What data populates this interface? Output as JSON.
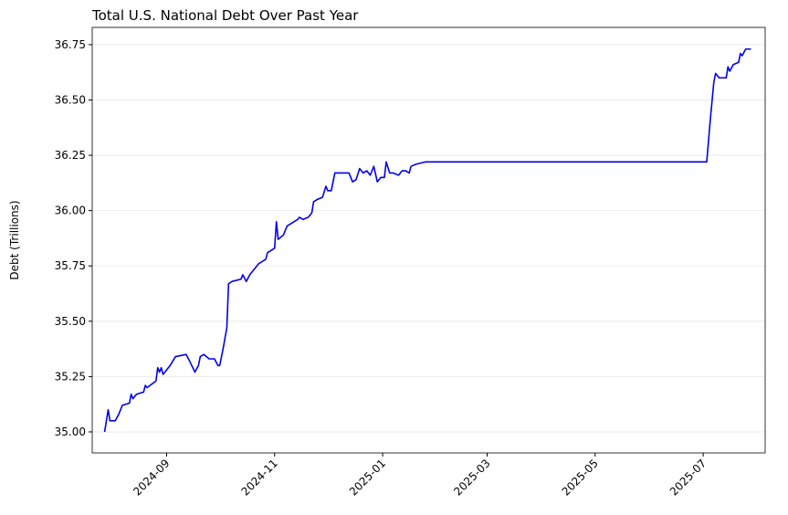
{
  "chart_data": {
    "type": "line",
    "title": "Total U.S. National Debt Over Past Year",
    "y_label": "Debt (Trillions)",
    "x": [
      "2024-07-28",
      "2024-07-30",
      "2024-07-31",
      "2024-08-03",
      "2024-08-05",
      "2024-08-07",
      "2024-08-11",
      "2024-08-12",
      "2024-08-13",
      "2024-08-15",
      "2024-08-19",
      "2024-08-20",
      "2024-08-21",
      "2024-08-26",
      "2024-08-27",
      "2024-08-28",
      "2024-08-29",
      "2024-08-30",
      "2024-09-03",
      "2024-09-06",
      "2024-09-12",
      "2024-09-14",
      "2024-09-17",
      "2024-09-19",
      "2024-09-20",
      "2024-09-22",
      "2024-09-25",
      "2024-09-28",
      "2024-09-30",
      "2024-10-01",
      "2024-10-03",
      "2024-10-05",
      "2024-10-06",
      "2024-10-08",
      "2024-10-13",
      "2024-10-14",
      "2024-10-16",
      "2024-10-18",
      "2024-10-21",
      "2024-10-23",
      "2024-10-25",
      "2024-10-27",
      "2024-10-28",
      "2024-10-30",
      "2024-11-01",
      "2024-11-02",
      "2024-11-03",
      "2024-11-06",
      "2024-11-08",
      "2024-11-10",
      "2024-11-14",
      "2024-11-15",
      "2024-11-17",
      "2024-11-20",
      "2024-11-22",
      "2024-11-23",
      "2024-11-25",
      "2024-11-28",
      "2024-11-30",
      "2024-12-01",
      "2024-12-03",
      "2024-12-05",
      "2024-12-09",
      "2024-12-13",
      "2024-12-15",
      "2024-12-17",
      "2024-12-19",
      "2024-12-21",
      "2024-12-23",
      "2024-12-25",
      "2024-12-27",
      "2024-12-29",
      "2024-12-31",
      "2025-01-02",
      "2025-01-03",
      "2025-01-05",
      "2025-01-07",
      "2025-01-10",
      "2025-01-12",
      "2025-01-14",
      "2025-01-16",
      "2025-01-17",
      "2025-01-20",
      "2025-01-25",
      "2025-02-01",
      "2025-02-15",
      "2025-02-25",
      "2025-03-15",
      "2025-04-01",
      "2025-05-01",
      "2025-06-01",
      "2025-07-01",
      "2025-07-03",
      "2025-07-05",
      "2025-07-07",
      "2025-07-08",
      "2025-07-10",
      "2025-07-14",
      "2025-07-15",
      "2025-07-16",
      "2025-07-18",
      "2025-07-21",
      "2025-07-22",
      "2025-07-23",
      "2025-07-25",
      "2025-07-28"
    ],
    "series": [
      {
        "color": "#0000ee",
        "values": [
          35.0,
          35.1,
          35.05,
          35.05,
          35.08,
          35.12,
          35.13,
          35.17,
          35.15,
          35.17,
          35.18,
          35.21,
          35.2,
          35.23,
          35.29,
          35.27,
          35.29,
          35.26,
          35.3,
          35.34,
          35.35,
          35.32,
          35.27,
          35.3,
          35.34,
          35.35,
          35.33,
          35.33,
          35.3,
          35.3,
          35.38,
          35.47,
          35.67,
          35.68,
          35.69,
          35.71,
          35.68,
          35.71,
          35.74,
          35.76,
          35.77,
          35.78,
          35.81,
          35.82,
          35.83,
          35.95,
          35.87,
          35.89,
          35.93,
          35.94,
          35.96,
          35.97,
          35.96,
          35.97,
          35.99,
          36.04,
          36.05,
          36.06,
          36.11,
          36.09,
          36.09,
          36.17,
          36.17,
          36.17,
          36.13,
          36.14,
          36.19,
          36.17,
          36.18,
          36.16,
          36.2,
          36.13,
          36.15,
          36.15,
          36.22,
          36.17,
          36.17,
          36.16,
          36.18,
          36.18,
          36.17,
          36.2,
          36.21,
          36.22,
          36.22,
          36.22,
          36.22,
          36.22,
          36.22,
          36.22,
          36.22,
          36.22,
          36.22,
          36.41,
          36.58,
          36.62,
          36.6,
          36.6,
          36.65,
          36.63,
          36.66,
          36.67,
          36.71,
          36.7,
          36.73,
          36.73
        ]
      }
    ],
    "xlim": [
      "2024-07-21",
      "2025-08-05"
    ],
    "xticks": [
      {
        "value": "2024-09-01",
        "label": "2024-09"
      },
      {
        "value": "2024-11-01",
        "label": "2024-11"
      },
      {
        "value": "2025-01-01",
        "label": "2025-01"
      },
      {
        "value": "2025-03-01",
        "label": "2025-03"
      },
      {
        "value": "2025-05-01",
        "label": "2025-05"
      },
      {
        "value": "2025-07-01",
        "label": "2025-07"
      }
    ],
    "ylim": [
      34.905,
      36.828
    ],
    "yticks": [
      {
        "value": 35,
        "label": "35.00"
      },
      {
        "value": 35.25,
        "label": "35.25"
      },
      {
        "value": 35.5,
        "label": "35.50"
      },
      {
        "value": 35.75,
        "label": "35.75"
      },
      {
        "value": 36,
        "label": "36.00"
      },
      {
        "value": 36.25,
        "label": "36.25"
      },
      {
        "value": 36.5,
        "label": "36.50"
      },
      {
        "value": 36.75,
        "label": "36.75"
      }
    ],
    "grid": true
  }
}
